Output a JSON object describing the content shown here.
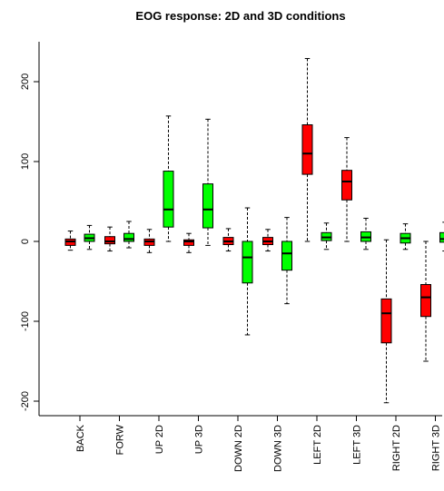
{
  "chart_data": {
    "type": "boxplot",
    "title": "EOG response: 2D and 3D conditions",
    "xlabel": "",
    "ylabel": "",
    "ylim": [
      -230,
      250
    ],
    "yticks": [
      -200,
      -100,
      0,
      100,
      200
    ],
    "grid": false,
    "legend": "none",
    "colors": {
      "red": "#ff0000",
      "green": "#00ff00",
      "outline": "#000000"
    },
    "categories": [
      "BACK",
      "FORW",
      "UP 2D",
      "UP 3D",
      "DOWN 2D",
      "DOWN 3D",
      "LEFT 2D",
      "LEFT 3D",
      "RIGHT 2D",
      "RIGHT 3D"
    ],
    "groups": [
      {
        "label": "BACK",
        "boxes": [
          {
            "color": "red",
            "min": -11,
            "q1": -5,
            "median": 0,
            "q3": 3,
            "max": 13
          },
          {
            "color": "green",
            "min": -10,
            "q1": 0,
            "median": 4,
            "q3": 9,
            "max": 20
          }
        ]
      },
      {
        "label": "FORW",
        "boxes": [
          {
            "color": "red",
            "min": -12,
            "q1": -3,
            "median": 0,
            "q3": 6,
            "max": 18
          },
          {
            "color": "green",
            "min": -8,
            "q1": 0,
            "median": 3,
            "q3": 10,
            "max": 25
          }
        ]
      },
      {
        "label": "UP 2D",
        "boxes": [
          {
            "color": "red",
            "min": -14,
            "q1": -5,
            "median": 0,
            "q3": 3,
            "max": 15
          },
          {
            "color": "green",
            "min": 0,
            "q1": 18,
            "median": 40,
            "q3": 88,
            "max": 157
          }
        ]
      },
      {
        "label": "UP 3D",
        "boxes": [
          {
            "color": "red",
            "min": -14,
            "q1": -5,
            "median": 0,
            "q3": 2,
            "max": 10
          },
          {
            "color": "green",
            "min": -5,
            "q1": 17,
            "median": 40,
            "q3": 72,
            "max": 153
          }
        ]
      },
      {
        "label": "DOWN 2D",
        "boxes": [
          {
            "color": "red",
            "min": -12,
            "q1": -4,
            "median": 0,
            "q3": 5,
            "max": 16
          },
          {
            "color": "green",
            "min": -117,
            "q1": -52,
            "median": -20,
            "q3": 0,
            "max": 42
          }
        ]
      },
      {
        "label": "DOWN 3D",
        "boxes": [
          {
            "color": "red",
            "min": -12,
            "q1": -4,
            "median": 0,
            "q3": 5,
            "max": 15
          },
          {
            "color": "green",
            "min": -78,
            "q1": -36,
            "median": -15,
            "q3": 0,
            "max": 30
          }
        ]
      },
      {
        "label": "LEFT 2D",
        "boxes": [
          {
            "color": "red",
            "min": 0,
            "q1": 84,
            "median": 110,
            "q3": 146,
            "max": 229
          },
          {
            "color": "green",
            "min": -10,
            "q1": 1,
            "median": 5,
            "q3": 11,
            "max": 23
          }
        ]
      },
      {
        "label": "LEFT 3D",
        "boxes": [
          {
            "color": "red",
            "min": 0,
            "q1": 52,
            "median": 75,
            "q3": 89,
            "max": 130
          },
          {
            "color": "green",
            "min": -10,
            "q1": 0,
            "median": 5,
            "q3": 12,
            "max": 29
          }
        ]
      },
      {
        "label": "RIGHT 2D",
        "boxes": [
          {
            "color": "red",
            "min": -202,
            "q1": -127,
            "median": -90,
            "q3": -72,
            "max": 2
          },
          {
            "color": "green",
            "min": -10,
            "q1": -2,
            "median": 4,
            "q3": 10,
            "max": 22
          }
        ]
      },
      {
        "label": "RIGHT 3D",
        "boxes": [
          {
            "color": "red",
            "min": -150,
            "q1": -94,
            "median": -70,
            "q3": -54,
            "max": 0
          },
          {
            "color": "green",
            "min": -12,
            "q1": -1,
            "median": 3,
            "q3": 11,
            "max": 24
          }
        ]
      }
    ]
  }
}
